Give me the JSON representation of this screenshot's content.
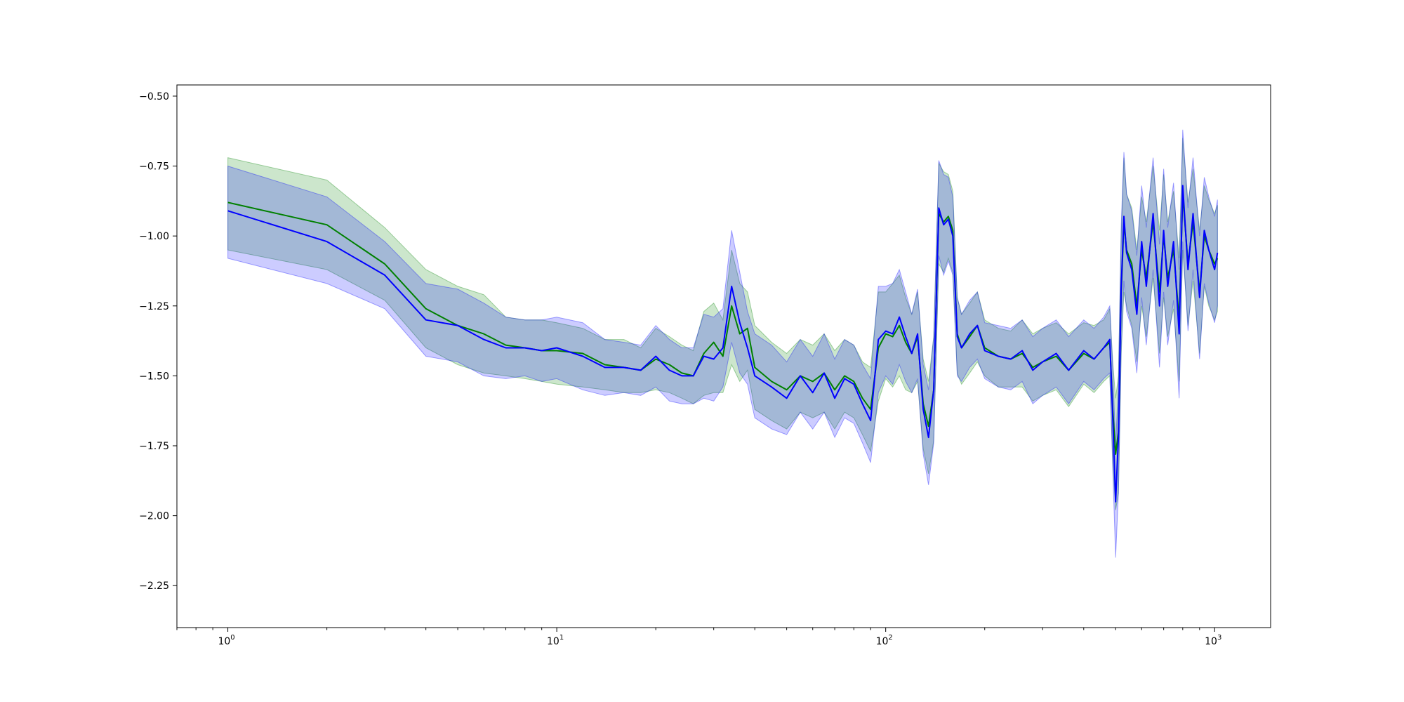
{
  "chart_data": {
    "type": "line",
    "title": "",
    "xlabel": "",
    "ylabel": "",
    "xscale": "log",
    "xlim": [
      0.7,
      1480
    ],
    "ylim": [
      -2.4,
      -0.46
    ],
    "grid": false,
    "legend": "none",
    "x_ticks": [
      {
        "value": 1,
        "base": "10",
        "exp": "0"
      },
      {
        "value": 10,
        "base": "10",
        "exp": "1"
      },
      {
        "value": 100,
        "base": "10",
        "exp": "2"
      },
      {
        "value": 1000,
        "base": "10",
        "exp": "3"
      }
    ],
    "y_ticks": [
      {
        "value": -0.5,
        "label": "−0.50"
      },
      {
        "value": -0.75,
        "label": "−0.75"
      },
      {
        "value": -1.0,
        "label": "−1.00"
      },
      {
        "value": -1.25,
        "label": "−1.25"
      },
      {
        "value": -1.5,
        "label": "−1.50"
      },
      {
        "value": -1.75,
        "label": "−1.75"
      },
      {
        "value": -2.0,
        "label": "−2.00"
      },
      {
        "value": -2.25,
        "label": "−2.25"
      }
    ],
    "series": [
      {
        "color": "#008000",
        "band_color": "#008000",
        "band_opacity": 0.2,
        "x": [
          1,
          2,
          3,
          4,
          5,
          6,
          7,
          8,
          9,
          10,
          12,
          14,
          16,
          18,
          20,
          22,
          24,
          26,
          28,
          30,
          32,
          34,
          36,
          38,
          40,
          45,
          50,
          55,
          60,
          65,
          70,
          75,
          80,
          85,
          90,
          95,
          100,
          105,
          110,
          115,
          120,
          125,
          130,
          135,
          140,
          145,
          150,
          155,
          160,
          165,
          170,
          180,
          190,
          200,
          220,
          240,
          260,
          280,
          300,
          330,
          360,
          400,
          430,
          460,
          480,
          490,
          500,
          510,
          520,
          530,
          540,
          560,
          580,
          600,
          620,
          650,
          680,
          700,
          720,
          750,
          780,
          800,
          830,
          860,
          900,
          930,
          960,
          1000,
          1020
        ],
        "y": [
          -0.88,
          -0.96,
          -1.1,
          -1.26,
          -1.32,
          -1.35,
          -1.39,
          -1.4,
          -1.41,
          -1.41,
          -1.42,
          -1.46,
          -1.47,
          -1.48,
          -1.44,
          -1.46,
          -1.49,
          -1.5,
          -1.42,
          -1.38,
          -1.43,
          -1.25,
          -1.35,
          -1.33,
          -1.47,
          -1.52,
          -1.55,
          -1.5,
          -1.52,
          -1.49,
          -1.55,
          -1.5,
          -1.52,
          -1.58,
          -1.62,
          -1.4,
          -1.35,
          -1.36,
          -1.32,
          -1.38,
          -1.42,
          -1.36,
          -1.6,
          -1.68,
          -1.55,
          -0.92,
          -0.95,
          -0.93,
          -0.98,
          -1.35,
          -1.4,
          -1.36,
          -1.32,
          -1.4,
          -1.43,
          -1.44,
          -1.42,
          -1.47,
          -1.45,
          -1.43,
          -1.48,
          -1.42,
          -1.44,
          -1.4,
          -1.38,
          -1.62,
          -1.78,
          -1.7,
          -1.2,
          -0.95,
          -1.05,
          -1.1,
          -1.25,
          -1.05,
          -1.15,
          -0.95,
          -1.2,
          -1.0,
          -1.15,
          -1.05,
          -1.3,
          -0.85,
          -1.1,
          -0.95,
          -1.2,
          -1.0,
          -1.05,
          -1.1,
          -1.08
        ],
        "upper": [
          -0.72,
          -0.8,
          -0.97,
          -1.12,
          -1.18,
          -1.21,
          -1.29,
          -1.3,
          -1.3,
          -1.31,
          -1.33,
          -1.37,
          -1.37,
          -1.4,
          -1.33,
          -1.36,
          -1.39,
          -1.41,
          -1.27,
          -1.24,
          -1.3,
          -1.05,
          -1.17,
          -1.2,
          -1.32,
          -1.38,
          -1.42,
          -1.37,
          -1.39,
          -1.35,
          -1.41,
          -1.37,
          -1.39,
          -1.45,
          -1.47,
          -1.2,
          -1.2,
          -1.17,
          -1.14,
          -1.22,
          -1.28,
          -1.2,
          -1.44,
          -1.52,
          -1.36,
          -0.74,
          -0.77,
          -0.78,
          -0.84,
          -1.22,
          -1.28,
          -1.24,
          -1.2,
          -1.3,
          -1.33,
          -1.34,
          -1.3,
          -1.35,
          -1.33,
          -1.31,
          -1.35,
          -1.31,
          -1.32,
          -1.3,
          -1.26,
          -1.45,
          -1.58,
          -1.5,
          -0.99,
          -0.72,
          -0.85,
          -0.9,
          -1.05,
          -0.86,
          -0.95,
          -0.75,
          -0.98,
          -0.78,
          -0.95,
          -0.84,
          -1.08,
          -0.65,
          -0.88,
          -0.76,
          -0.98,
          -0.82,
          -0.87,
          -0.92,
          -0.89
        ],
        "lower": [
          -1.05,
          -1.12,
          -1.23,
          -1.4,
          -1.46,
          -1.49,
          -1.5,
          -1.51,
          -1.52,
          -1.53,
          -1.54,
          -1.55,
          -1.56,
          -1.56,
          -1.55,
          -1.56,
          -1.58,
          -1.6,
          -1.57,
          -1.56,
          -1.56,
          -1.46,
          -1.52,
          -1.48,
          -1.62,
          -1.66,
          -1.69,
          -1.63,
          -1.65,
          -1.63,
          -1.69,
          -1.63,
          -1.65,
          -1.71,
          -1.77,
          -1.59,
          -1.51,
          -1.54,
          -1.5,
          -1.55,
          -1.56,
          -1.52,
          -1.76,
          -1.85,
          -1.73,
          -1.1,
          -1.13,
          -1.08,
          -1.13,
          -1.49,
          -1.53,
          -1.49,
          -1.45,
          -1.5,
          -1.54,
          -1.54,
          -1.54,
          -1.59,
          -1.57,
          -1.55,
          -1.61,
          -1.53,
          -1.56,
          -1.52,
          -1.5,
          -1.81,
          -1.98,
          -1.92,
          -1.42,
          -1.2,
          -1.25,
          -1.32,
          -1.45,
          -1.25,
          -1.36,
          -1.15,
          -1.42,
          -1.22,
          -1.36,
          -1.26,
          -1.52,
          -1.05,
          -1.32,
          -1.16,
          -1.42,
          -1.18,
          -1.25,
          -1.3,
          -1.27
        ]
      },
      {
        "color": "#0000ff",
        "band_color": "#0000ff",
        "band_opacity": 0.2,
        "x": [
          1,
          2,
          3,
          4,
          5,
          6,
          7,
          8,
          9,
          10,
          12,
          14,
          16,
          18,
          20,
          22,
          24,
          26,
          28,
          30,
          32,
          34,
          36,
          38,
          40,
          45,
          50,
          55,
          60,
          65,
          70,
          75,
          80,
          85,
          90,
          95,
          100,
          105,
          110,
          115,
          120,
          125,
          130,
          135,
          140,
          145,
          150,
          155,
          160,
          165,
          170,
          180,
          190,
          200,
          220,
          240,
          260,
          280,
          300,
          330,
          360,
          400,
          430,
          460,
          480,
          490,
          500,
          510,
          520,
          530,
          540,
          560,
          580,
          600,
          620,
          650,
          680,
          700,
          720,
          750,
          780,
          800,
          830,
          860,
          900,
          930,
          960,
          1000,
          1020
        ],
        "y": [
          -0.91,
          -1.02,
          -1.14,
          -1.3,
          -1.32,
          -1.37,
          -1.4,
          -1.4,
          -1.41,
          -1.4,
          -1.43,
          -1.47,
          -1.47,
          -1.48,
          -1.43,
          -1.48,
          -1.5,
          -1.5,
          -1.43,
          -1.44,
          -1.4,
          -1.18,
          -1.31,
          -1.4,
          -1.5,
          -1.54,
          -1.58,
          -1.5,
          -1.56,
          -1.49,
          -1.58,
          -1.51,
          -1.53,
          -1.6,
          -1.66,
          -1.37,
          -1.34,
          -1.35,
          -1.29,
          -1.36,
          -1.42,
          -1.35,
          -1.62,
          -1.72,
          -1.55,
          -0.9,
          -0.96,
          -0.94,
          -1.0,
          -1.36,
          -1.4,
          -1.35,
          -1.32,
          -1.41,
          -1.43,
          -1.44,
          -1.41,
          -1.48,
          -1.45,
          -1.42,
          -1.48,
          -1.41,
          -1.44,
          -1.4,
          -1.37,
          -1.65,
          -1.95,
          -1.72,
          -1.18,
          -0.93,
          -1.06,
          -1.12,
          -1.28,
          -1.02,
          -1.18,
          -0.92,
          -1.25,
          -0.98,
          -1.18,
          -1.02,
          -1.35,
          -0.82,
          -1.12,
          -0.92,
          -1.22,
          -0.98,
          -1.05,
          -1.12,
          -1.06
        ],
        "upper": [
          -0.75,
          -0.86,
          -1.02,
          -1.17,
          -1.19,
          -1.24,
          -1.29,
          -1.3,
          -1.3,
          -1.29,
          -1.31,
          -1.37,
          -1.38,
          -1.39,
          -1.32,
          -1.37,
          -1.4,
          -1.4,
          -1.28,
          -1.29,
          -1.26,
          -0.98,
          -1.13,
          -1.27,
          -1.35,
          -1.39,
          -1.45,
          -1.37,
          -1.43,
          -1.35,
          -1.44,
          -1.37,
          -1.39,
          -1.46,
          -1.51,
          -1.18,
          -1.18,
          -1.17,
          -1.12,
          -1.2,
          -1.28,
          -1.19,
          -1.46,
          -1.55,
          -1.36,
          -0.73,
          -0.78,
          -0.79,
          -0.86,
          -1.22,
          -1.28,
          -1.23,
          -1.2,
          -1.31,
          -1.32,
          -1.33,
          -1.3,
          -1.36,
          -1.33,
          -1.3,
          -1.36,
          -1.3,
          -1.33,
          -1.29,
          -1.25,
          -1.47,
          -1.75,
          -1.52,
          -0.96,
          -0.7,
          -0.85,
          -0.91,
          -1.07,
          -0.82,
          -0.97,
          -0.72,
          -1.03,
          -0.76,
          -0.97,
          -0.81,
          -1.12,
          -0.62,
          -0.9,
          -0.72,
          -1.0,
          -0.79,
          -0.86,
          -0.93,
          -0.87
        ],
        "lower": [
          -1.08,
          -1.17,
          -1.26,
          -1.43,
          -1.45,
          -1.5,
          -1.51,
          -1.5,
          -1.52,
          -1.51,
          -1.55,
          -1.57,
          -1.56,
          -1.57,
          -1.54,
          -1.59,
          -1.6,
          -1.6,
          -1.58,
          -1.59,
          -1.54,
          -1.38,
          -1.49,
          -1.53,
          -1.65,
          -1.69,
          -1.71,
          -1.63,
          -1.69,
          -1.63,
          -1.72,
          -1.65,
          -1.67,
          -1.74,
          -1.81,
          -1.56,
          -1.5,
          -1.53,
          -1.46,
          -1.52,
          -1.56,
          -1.51,
          -1.78,
          -1.89,
          -1.74,
          -1.07,
          -1.14,
          -1.09,
          -1.14,
          -1.5,
          -1.52,
          -1.47,
          -1.44,
          -1.51,
          -1.54,
          -1.55,
          -1.52,
          -1.6,
          -1.57,
          -1.54,
          -1.6,
          -1.52,
          -1.55,
          -1.51,
          -1.49,
          -1.83,
          -2.15,
          -1.92,
          -1.4,
          -1.16,
          -1.27,
          -1.33,
          -1.49,
          -1.22,
          -1.39,
          -1.12,
          -1.47,
          -1.2,
          -1.39,
          -1.23,
          -1.58,
          -1.02,
          -1.34,
          -1.12,
          -1.44,
          -1.17,
          -1.24,
          -1.31,
          -1.25
        ]
      }
    ]
  }
}
